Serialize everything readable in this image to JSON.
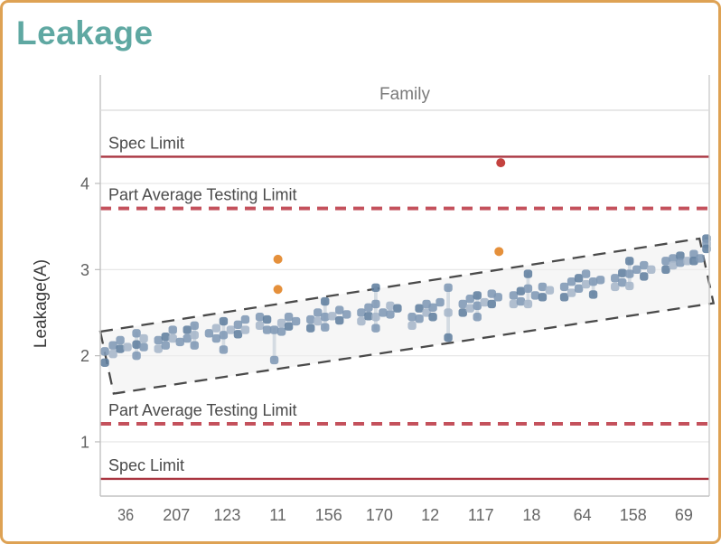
{
  "header": {
    "title": "Leakage"
  },
  "colors": {
    "title": "#5FA8A2",
    "frame_border": "#DEA254",
    "spec_line": "#A93540",
    "pat_line": "#C4515C",
    "limit_label": "#4A4A4A",
    "grid": "#E5E5E5",
    "axis_line": "#C2C2C2",
    "band_fill": "#EFEFEF",
    "band_stroke": "#4A4A4A",
    "whisker": "#D4DBE2",
    "marker_shades": [
      "#61809F",
      "#8099B5",
      "#A6B6C9"
    ],
    "outlier_mild": "#E5903B",
    "outlier_high": "#C4423F"
  },
  "chart_data": {
    "type": "scatter",
    "title": "Leakage",
    "x_header": "Family",
    "ylabel": "Leakage(A)",
    "categories": [
      "36",
      "207",
      "123",
      "11",
      "156",
      "170",
      "12",
      "117",
      "18",
      "64",
      "158",
      "69"
    ],
    "y_ticks": [
      1,
      2,
      3,
      4
    ],
    "ylim": [
      0.37,
      4.85
    ],
    "grid": "horizontal",
    "legend": "none",
    "limit_lines": [
      {
        "label": "Spec Limit",
        "value": 4.31,
        "style": "solid"
      },
      {
        "label": "Part Average Testing Limit",
        "value": 3.71,
        "style": "dashed"
      },
      {
        "label": "Part Average Testing Limit",
        "value": 1.21,
        "style": "dashed"
      },
      {
        "label": "Spec Limit",
        "value": 0.57,
        "style": "solid"
      }
    ],
    "trend_band": {
      "shape": "rotated-rectangle-dashed",
      "corners_frac_value": [
        [
          0.0,
          2.28
        ],
        [
          0.984,
          3.36
        ],
        [
          1.007,
          2.61
        ],
        [
          0.022,
          1.56
        ]
      ]
    },
    "outliers": [
      {
        "category": "11",
        "dx": 0,
        "value": 3.12,
        "severity": "mild"
      },
      {
        "category": "11",
        "dx": 0,
        "value": 2.77,
        "severity": "mild"
      },
      {
        "category": "117",
        "dx": 20,
        "value": 3.21,
        "severity": "mild"
      },
      {
        "category": "117",
        "dx": 22,
        "value": 4.24,
        "severity": "high"
      }
    ],
    "whiskers": [
      [
        0,
        12,
        2.0,
        2.26
      ],
      [
        1,
        20,
        2.12,
        2.35
      ],
      [
        2,
        -4,
        2.07,
        2.4
      ],
      [
        3,
        -4,
        1.95,
        2.3
      ],
      [
        4,
        -4,
        2.33,
        2.63
      ],
      [
        5,
        -4,
        2.32,
        2.79
      ],
      [
        6,
        20,
        2.21,
        2.79
      ],
      [
        7,
        -4,
        2.45,
        2.7
      ],
      [
        8,
        -4,
        2.6,
        2.95
      ],
      [
        9,
        12,
        2.71,
        2.86
      ],
      [
        10,
        -4,
        2.81,
        3.1
      ],
      [
        11,
        25,
        3.24,
        3.36
      ]
    ],
    "points": [
      [
        0,
        -23,
        2.05,
        1
      ],
      [
        0,
        -23,
        1.92,
        0
      ],
      [
        0,
        -14,
        2.12,
        1
      ],
      [
        0,
        -14,
        2.02,
        2
      ],
      [
        0,
        -6,
        2.18,
        1
      ],
      [
        0,
        -6,
        2.08,
        0
      ],
      [
        0,
        2,
        2.1,
        2
      ],
      [
        0,
        12,
        2.26,
        1
      ],
      [
        0,
        12,
        2.13,
        0
      ],
      [
        0,
        12,
        2.0,
        1
      ],
      [
        0,
        20,
        2.2,
        2
      ],
      [
        0,
        20,
        2.1,
        1
      ],
      [
        1,
        -20,
        2.18,
        1
      ],
      [
        1,
        -20,
        2.08,
        2
      ],
      [
        1,
        -12,
        2.22,
        0
      ],
      [
        1,
        -12,
        2.12,
        1
      ],
      [
        1,
        -4,
        2.3,
        1
      ],
      [
        1,
        -4,
        2.2,
        2
      ],
      [
        1,
        4,
        2.16,
        1
      ],
      [
        1,
        12,
        2.3,
        0
      ],
      [
        1,
        12,
        2.2,
        1
      ],
      [
        1,
        20,
        2.35,
        1
      ],
      [
        1,
        20,
        2.24,
        2
      ],
      [
        1,
        20,
        2.12,
        1
      ],
      [
        2,
        -20,
        2.26,
        1
      ],
      [
        2,
        -12,
        2.32,
        2
      ],
      [
        2,
        -12,
        2.2,
        1
      ],
      [
        2,
        -4,
        2.4,
        0
      ],
      [
        2,
        -4,
        2.24,
        1
      ],
      [
        2,
        -4,
        2.07,
        1
      ],
      [
        2,
        4,
        2.3,
        2
      ],
      [
        2,
        12,
        2.36,
        1
      ],
      [
        2,
        12,
        2.25,
        0
      ],
      [
        2,
        20,
        2.42,
        1
      ],
      [
        2,
        20,
        2.3,
        2
      ],
      [
        3,
        -20,
        2.45,
        1
      ],
      [
        3,
        -20,
        2.35,
        2
      ],
      [
        3,
        -12,
        2.42,
        0
      ],
      [
        3,
        -12,
        2.3,
        1
      ],
      [
        3,
        -4,
        2.3,
        1
      ],
      [
        3,
        -4,
        1.95,
        1
      ],
      [
        3,
        4,
        2.38,
        2
      ],
      [
        3,
        4,
        2.28,
        1
      ],
      [
        3,
        12,
        2.45,
        1
      ],
      [
        3,
        12,
        2.34,
        0
      ],
      [
        3,
        20,
        2.4,
        1
      ],
      [
        4,
        -20,
        2.42,
        1
      ],
      [
        4,
        -20,
        2.32,
        0
      ],
      [
        4,
        -12,
        2.5,
        1
      ],
      [
        4,
        -12,
        2.4,
        2
      ],
      [
        4,
        -4,
        2.63,
        0
      ],
      [
        4,
        -4,
        2.45,
        1
      ],
      [
        4,
        -4,
        2.33,
        1
      ],
      [
        4,
        4,
        2.46,
        2
      ],
      [
        4,
        12,
        2.53,
        1
      ],
      [
        4,
        12,
        2.41,
        0
      ],
      [
        4,
        20,
        2.48,
        1
      ],
      [
        5,
        -20,
        2.5,
        1
      ],
      [
        5,
        -20,
        2.4,
        2
      ],
      [
        5,
        -12,
        2.56,
        1
      ],
      [
        5,
        -12,
        2.46,
        0
      ],
      [
        5,
        -4,
        2.79,
        0
      ],
      [
        5,
        -4,
        2.6,
        1
      ],
      [
        5,
        -4,
        2.45,
        2
      ],
      [
        5,
        -4,
        2.32,
        1
      ],
      [
        5,
        4,
        2.5,
        1
      ],
      [
        5,
        12,
        2.58,
        2
      ],
      [
        5,
        12,
        2.48,
        1
      ],
      [
        5,
        20,
        2.55,
        0
      ],
      [
        6,
        -20,
        2.45,
        1
      ],
      [
        6,
        -20,
        2.35,
        2
      ],
      [
        6,
        -12,
        2.55,
        0
      ],
      [
        6,
        -12,
        2.43,
        1
      ],
      [
        6,
        -4,
        2.6,
        1
      ],
      [
        6,
        -4,
        2.5,
        2
      ],
      [
        6,
        3,
        2.56,
        1
      ],
      [
        6,
        3,
        2.45,
        0
      ],
      [
        6,
        11,
        2.62,
        1
      ],
      [
        6,
        20,
        2.79,
        1
      ],
      [
        6,
        20,
        2.5,
        2
      ],
      [
        6,
        20,
        2.21,
        0
      ],
      [
        7,
        -20,
        2.6,
        1
      ],
      [
        7,
        -20,
        2.5,
        0
      ],
      [
        7,
        -12,
        2.66,
        1
      ],
      [
        7,
        -12,
        2.55,
        2
      ],
      [
        7,
        -4,
        2.7,
        0
      ],
      [
        7,
        -4,
        2.58,
        1
      ],
      [
        7,
        -4,
        2.45,
        1
      ],
      [
        7,
        4,
        2.62,
        2
      ],
      [
        7,
        12,
        2.72,
        1
      ],
      [
        7,
        12,
        2.6,
        0
      ],
      [
        7,
        19,
        2.68,
        1
      ],
      [
        8,
        -20,
        2.7,
        1
      ],
      [
        8,
        -20,
        2.6,
        2
      ],
      [
        8,
        -12,
        2.75,
        0
      ],
      [
        8,
        -12,
        2.63,
        1
      ],
      [
        8,
        -4,
        2.95,
        0
      ],
      [
        8,
        -4,
        2.78,
        1
      ],
      [
        8,
        -4,
        2.6,
        2
      ],
      [
        8,
        4,
        2.7,
        1
      ],
      [
        8,
        12,
        2.8,
        1
      ],
      [
        8,
        12,
        2.68,
        0
      ],
      [
        8,
        20,
        2.76,
        2
      ],
      [
        9,
        -20,
        2.8,
        1
      ],
      [
        9,
        -20,
        2.68,
        0
      ],
      [
        9,
        -12,
        2.86,
        1
      ],
      [
        9,
        -12,
        2.73,
        2
      ],
      [
        9,
        -4,
        2.9,
        0
      ],
      [
        9,
        -4,
        2.78,
        1
      ],
      [
        9,
        4,
        2.95,
        1
      ],
      [
        9,
        4,
        2.83,
        2
      ],
      [
        9,
        12,
        2.86,
        1
      ],
      [
        9,
        12,
        2.71,
        0
      ],
      [
        9,
        20,
        2.88,
        1
      ],
      [
        10,
        -20,
        2.9,
        1
      ],
      [
        10,
        -20,
        2.8,
        2
      ],
      [
        10,
        -12,
        2.96,
        0
      ],
      [
        10,
        -12,
        2.85,
        1
      ],
      [
        10,
        -4,
        3.1,
        0
      ],
      [
        10,
        -4,
        2.95,
        1
      ],
      [
        10,
        -4,
        2.81,
        2
      ],
      [
        10,
        4,
        3.0,
        1
      ],
      [
        10,
        12,
        3.05,
        1
      ],
      [
        10,
        12,
        2.92,
        0
      ],
      [
        10,
        20,
        3.0,
        2
      ],
      [
        11,
        -20,
        3.1,
        1
      ],
      [
        11,
        -20,
        3.0,
        0
      ],
      [
        11,
        -12,
        3.13,
        1
      ],
      [
        11,
        -12,
        3.05,
        2
      ],
      [
        11,
        -4,
        3.16,
        0
      ],
      [
        11,
        -4,
        3.08,
        1
      ],
      [
        11,
        4,
        3.1,
        2
      ],
      [
        11,
        11,
        3.18,
        1
      ],
      [
        11,
        11,
        3.1,
        0
      ],
      [
        11,
        18,
        3.13,
        1
      ],
      [
        11,
        25,
        3.36,
        0
      ],
      [
        11,
        25,
        3.3,
        1
      ],
      [
        11,
        25,
        3.24,
        0
      ]
    ]
  }
}
